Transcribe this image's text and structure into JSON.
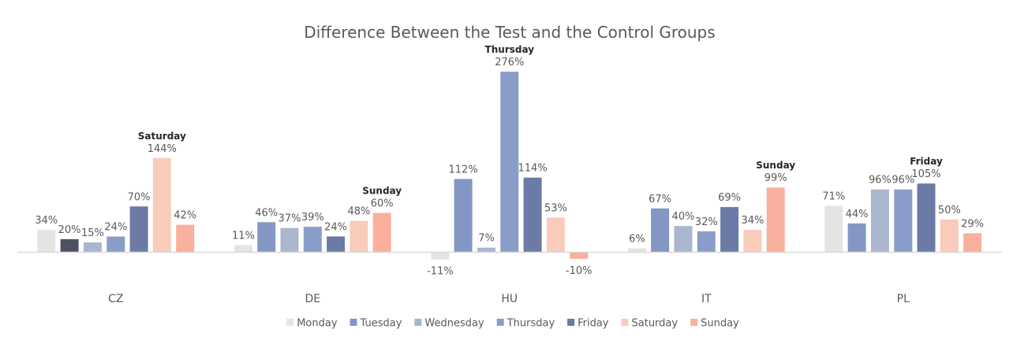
{
  "chart_data": {
    "type": "bar",
    "title": "Difference Between the Test and the Control Groups",
    "categories": [
      "CZ",
      "DE",
      "HU",
      "IT",
      "PL"
    ],
    "series": [
      {
        "name": "Monday",
        "color": "#e4e4e4",
        "values": [
          34,
          11,
          -11,
          6,
          71
        ],
        "labels": [
          "34%",
          "11%",
          "-11%",
          "6%",
          "71%"
        ]
      },
      {
        "name": "Tuesday",
        "color": "#8497c4",
        "values": [
          20,
          46,
          112,
          67,
          44
        ],
        "labels": [
          "20%",
          "46%",
          "112%",
          "67%",
          "44%"
        ]
      },
      {
        "name": "Wednesday",
        "color": "#aab6ce",
        "values": [
          15,
          37,
          7,
          40,
          96
        ],
        "labels": [
          "15%",
          "37%",
          "7%",
          "40%",
          "96%"
        ]
      },
      {
        "name": "Thursday",
        "color": "#8a9dc8",
        "values": [
          24,
          39,
          276,
          32,
          96
        ],
        "labels": [
          "24%",
          "39%",
          "276%",
          "32%",
          "96%"
        ]
      },
      {
        "name": "Friday",
        "color": "#6b7ba6",
        "values": [
          70,
          24,
          114,
          69,
          105
        ],
        "labels": [
          "70%",
          "24%",
          "114%",
          "69%",
          "105%"
        ]
      },
      {
        "name": "Saturday",
        "color": "#f9cbbb",
        "values": [
          144,
          48,
          53,
          34,
          50
        ],
        "labels": [
          "144%",
          "48%",
          "53%",
          "34%",
          "50%"
        ]
      },
      {
        "name": "Sunday",
        "color": "#f9b09d",
        "values": [
          42,
          60,
          -10,
          99,
          29
        ],
        "labels": [
          "42%",
          "60%",
          "-10%",
          "99%",
          "29%"
        ]
      }
    ],
    "bar_color_overrides": [
      {
        "category": "CZ",
        "series": "Tuesday",
        "color": "#4d5260"
      }
    ],
    "annotations": [
      {
        "category": "CZ",
        "series": "Saturday",
        "text": "Saturday"
      },
      {
        "category": "DE",
        "series": "Sunday",
        "text": "Sunday"
      },
      {
        "category": "HU",
        "series": "Thursday",
        "text": "Thursday"
      },
      {
        "category": "IT",
        "series": "Sunday",
        "text": "Sunday"
      },
      {
        "category": "PL",
        "series": "Friday",
        "text": "Friday"
      }
    ],
    "axis_color": "#d9d9d9",
    "legend_position": "bottom",
    "grid": false,
    "ylim": [
      -11,
      276
    ]
  }
}
